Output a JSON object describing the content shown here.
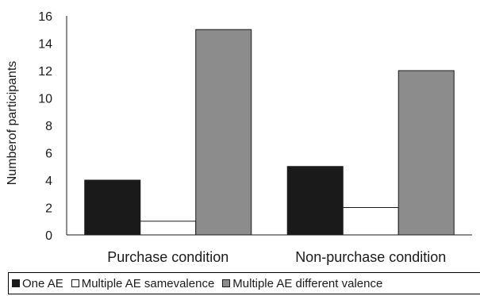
{
  "chart_data": {
    "type": "bar",
    "title": "",
    "xlabel": "",
    "ylabel": "Numberof participants",
    "ylim": [
      0,
      16
    ],
    "yticks": [
      0,
      2,
      4,
      6,
      8,
      10,
      12,
      14,
      16
    ],
    "grid": false,
    "legend_position": "bottom",
    "categories": [
      "Purchase condition",
      "Non-purchase condition"
    ],
    "series": [
      {
        "name": "One AE",
        "values": [
          4,
          5
        ],
        "color": "#1a1a1a"
      },
      {
        "name": "Multiple AE samevalence",
        "values": [
          1,
          2
        ],
        "color": "#ffffff"
      },
      {
        "name": "Multiple AE different valence",
        "values": [
          15,
          12
        ],
        "color": "#8c8c8c"
      }
    ]
  }
}
